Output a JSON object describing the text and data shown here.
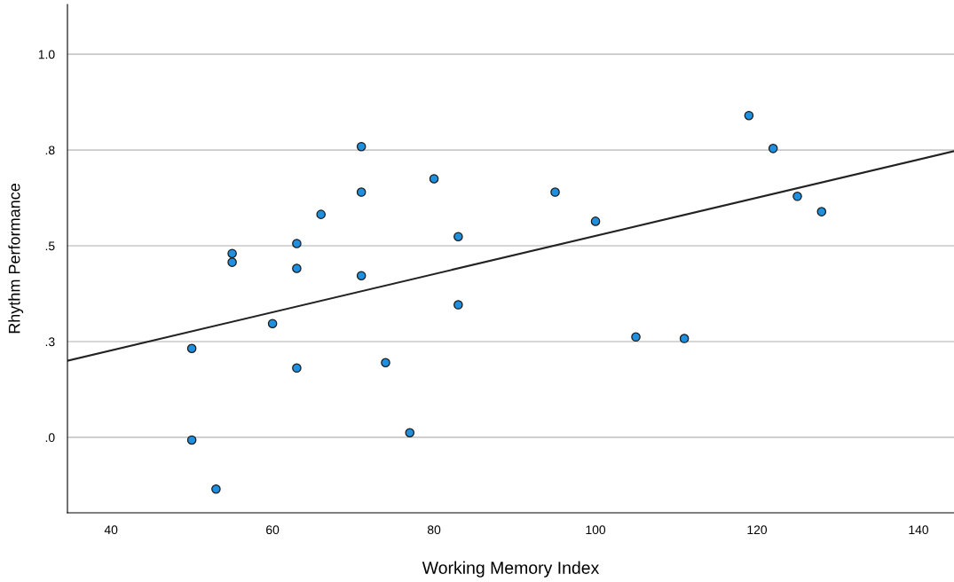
{
  "chart_data": {
    "type": "scatter",
    "xlabel": "Working Memory Index",
    "ylabel": "Rhythm Performance",
    "xlim": [
      34.6,
      144.4
    ],
    "ylim": [
      -0.197,
      1.13
    ],
    "xticks": [
      40,
      60,
      80,
      100,
      120,
      140
    ],
    "yticks": [
      {
        "value": 0,
        "label": ".0"
      },
      {
        "value": 0.25,
        "label": ".3"
      },
      {
        "value": 0.5,
        "label": ".5"
      },
      {
        "value": 0.75,
        "label": ".8"
      },
      {
        "value": 1.0,
        "label": "1.0"
      }
    ],
    "grid": "y",
    "series": [
      {
        "marker": "circle",
        "color": "#1f8fe0",
        "x": [
          50,
          50,
          53,
          55,
          55,
          60,
          63,
          63,
          63,
          66,
          71,
          71,
          71,
          74,
          77,
          80,
          83,
          83,
          95,
          100,
          105,
          111,
          119,
          122,
          125,
          128
        ],
        "values": [
          0.232,
          -0.007,
          -0.135,
          0.48,
          0.457,
          0.297,
          0.506,
          0.441,
          0.181,
          0.582,
          0.759,
          0.64,
          0.422,
          0.195,
          0.012,
          0.675,
          0.524,
          0.346,
          0.64,
          0.564,
          0.262,
          0.258,
          0.84,
          0.754,
          0.629,
          0.589
        ]
      },
      {
        "type": "line",
        "color": "#222222",
        "x": [
          34.6,
          144.4
        ],
        "values": [
          0.2,
          0.747
        ]
      }
    ]
  }
}
